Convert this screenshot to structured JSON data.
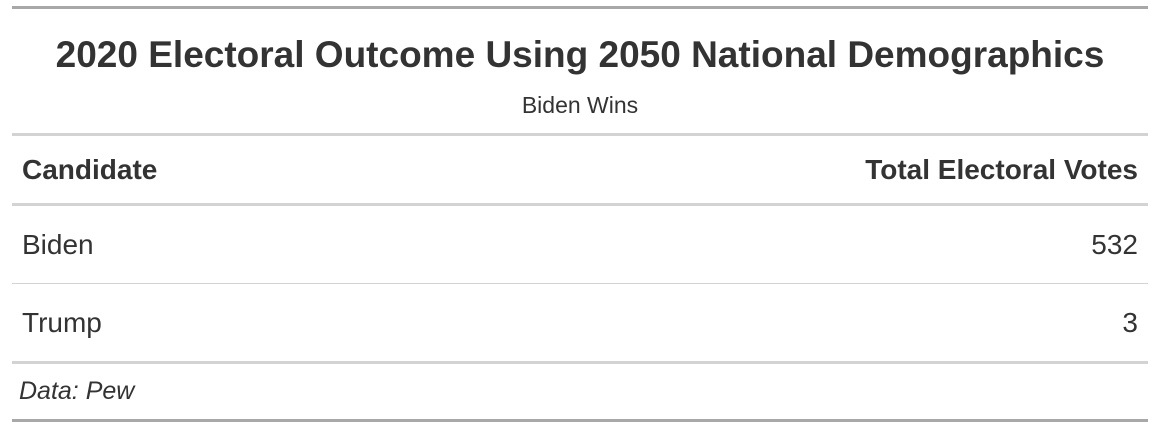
{
  "chart_data": {
    "type": "table",
    "title": "2020 Electoral Outcome Using 2050 National Demographics",
    "subtitle": "Biden Wins",
    "columns": [
      "Candidate",
      "Total Electoral Votes"
    ],
    "rows": [
      {
        "candidate": "Biden",
        "votes": "532"
      },
      {
        "candidate": "Trump",
        "votes": "3"
      }
    ],
    "source_note": "Data: Pew"
  }
}
